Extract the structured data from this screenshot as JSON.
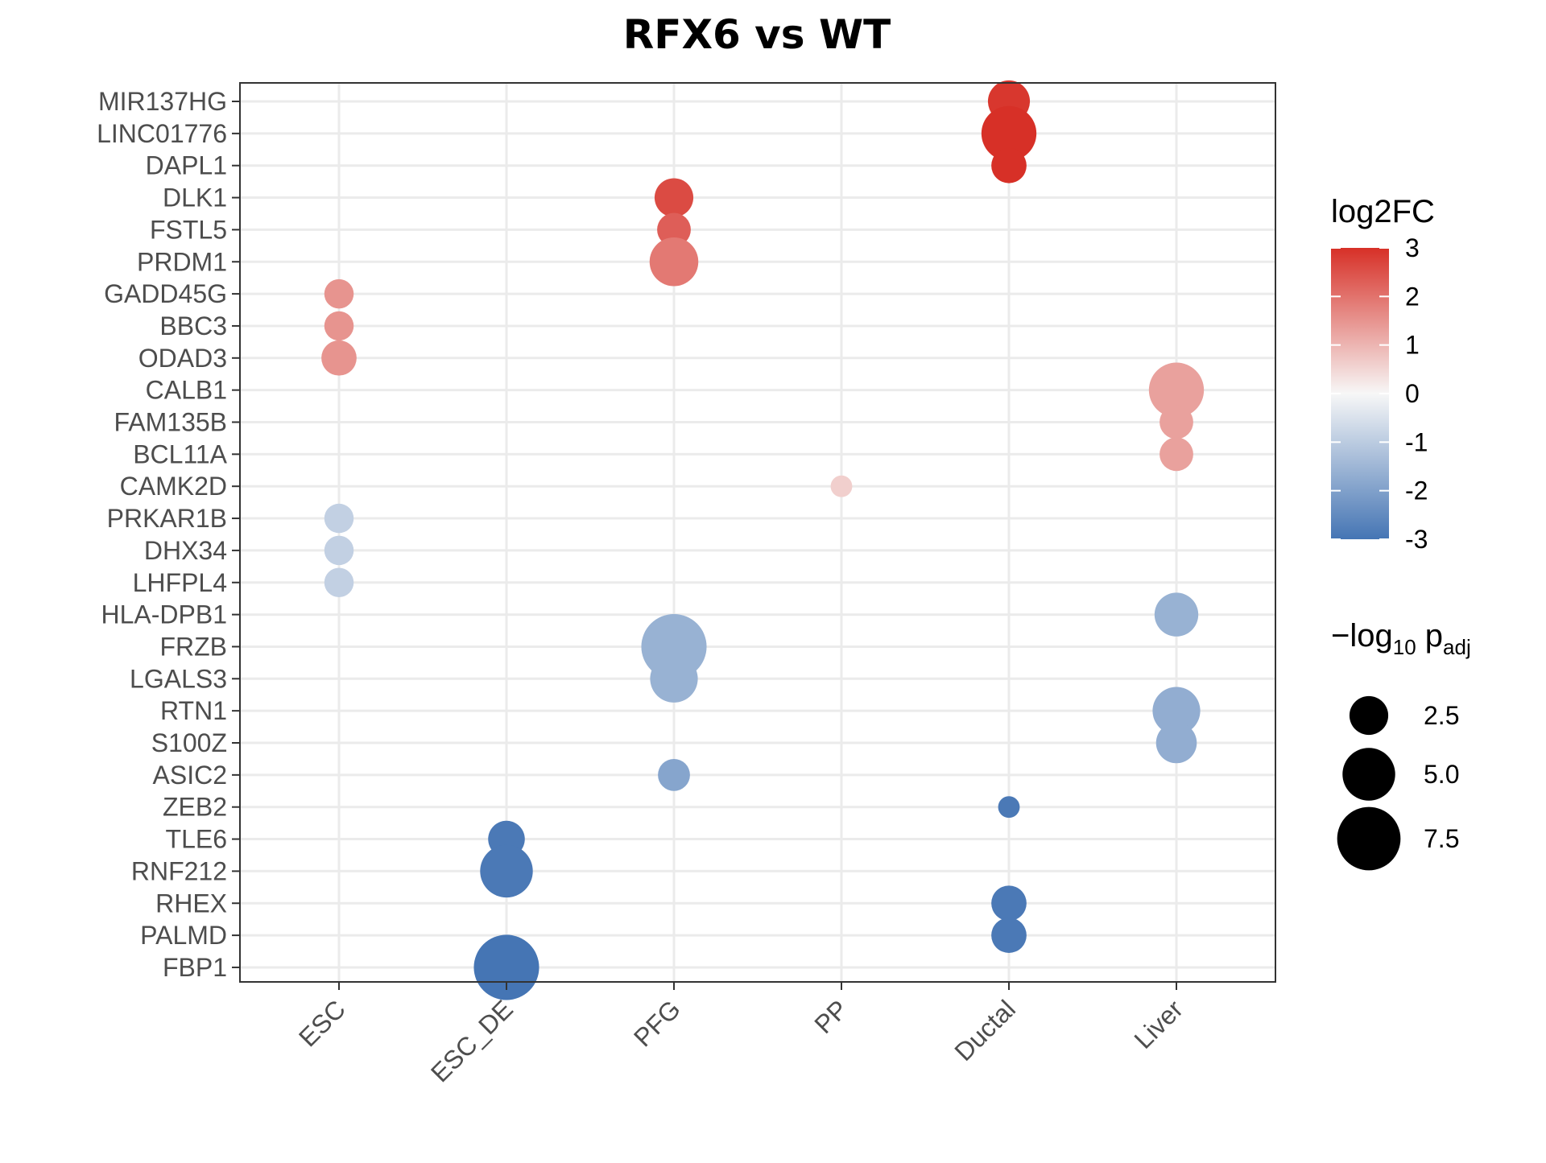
{
  "chart_data": {
    "type": "scatter",
    "title": "RFX6 vs WT",
    "xlabel": "",
    "ylabel": "",
    "x_categories": [
      "ESC",
      "ESC_DE",
      "PFG",
      "PP",
      "Ductal",
      "Liver"
    ],
    "y_categories": [
      "MIR137HG",
      "LINC01776",
      "DAPL1",
      "DLK1",
      "FSTL5",
      "PRDM1",
      "GADD45G",
      "BBC3",
      "ODAD3",
      "CALB1",
      "FAM135B",
      "BCL11A",
      "CAMK2D",
      "PRKAR1B",
      "DHX34",
      "LHFPL4",
      "HLA-DPB1",
      "FRZB",
      "LGALS3",
      "RTN1",
      "S100Z",
      "ASIC2",
      "ZEB2",
      "TLE6",
      "RNF212",
      "RHEX",
      "PALMD",
      "FBP1"
    ],
    "grid": true,
    "legend_position": "right",
    "color_legend": {
      "title": "log2FC",
      "range": [
        -3,
        3
      ],
      "ticks": [
        "3",
        "2",
        "1",
        "0",
        "-1",
        "-2",
        "-3"
      ],
      "colors": [
        "#4575b4",
        "#f7f7f7",
        "#d73027"
      ]
    },
    "size_legend": {
      "title_main": "−log",
      "title_sub": "10",
      "title_p": " p",
      "title_p_sub": "adj",
      "entries": [
        {
          "value": 2.5,
          "label": "2.5"
        },
        {
          "value": 5.0,
          "label": "5.0"
        },
        {
          "value": 7.5,
          "label": "7.5"
        }
      ]
    },
    "points": [
      {
        "x": "Ductal",
        "y": "MIR137HG",
        "log2FC": 2.9,
        "neglog10padj": 3.0
      },
      {
        "x": "Ductal",
        "y": "LINC01776",
        "log2FC": 3.0,
        "neglog10padj": 5.5
      },
      {
        "x": "Ductal",
        "y": "DAPL1",
        "log2FC": 3.0,
        "neglog10padj": 2.0
      },
      {
        "x": "PFG",
        "y": "DLK1",
        "log2FC": 2.6,
        "neglog10padj": 2.5
      },
      {
        "x": "PFG",
        "y": "FSTL5",
        "log2FC": 2.3,
        "neglog10padj": 1.8
      },
      {
        "x": "PFG",
        "y": "PRDM1",
        "log2FC": 1.9,
        "neglog10padj": 4.2
      },
      {
        "x": "ESC",
        "y": "GADD45G",
        "log2FC": 1.5,
        "neglog10padj": 1.3
      },
      {
        "x": "ESC",
        "y": "BBC3",
        "log2FC": 1.5,
        "neglog10padj": 1.3
      },
      {
        "x": "ESC",
        "y": "ODAD3",
        "log2FC": 1.5,
        "neglog10padj": 2.0
      },
      {
        "x": "Liver",
        "y": "CALB1",
        "log2FC": 1.3,
        "neglog10padj": 5.5
      },
      {
        "x": "Liver",
        "y": "FAM135B",
        "log2FC": 1.3,
        "neglog10padj": 1.8
      },
      {
        "x": "Liver",
        "y": "BCL11A",
        "log2FC": 1.3,
        "neglog10padj": 1.8
      },
      {
        "x": "PP",
        "y": "CAMK2D",
        "log2FC": 0.6,
        "neglog10padj": 0.6
      },
      {
        "x": "ESC",
        "y": "PRKAR1B",
        "log2FC": -0.9,
        "neglog10padj": 1.3
      },
      {
        "x": "ESC",
        "y": "DHX34",
        "log2FC": -0.9,
        "neglog10padj": 1.3
      },
      {
        "x": "ESC",
        "y": "LHFPL4",
        "log2FC": -0.9,
        "neglog10padj": 1.3
      },
      {
        "x": "Liver",
        "y": "HLA-DPB1",
        "log2FC": -1.6,
        "neglog10padj": 3.3
      },
      {
        "x": "PFG",
        "y": "FRZB",
        "log2FC": -1.6,
        "neglog10padj": 8.0
      },
      {
        "x": "PFG",
        "y": "LGALS3",
        "log2FC": -1.6,
        "neglog10padj": 4.0
      },
      {
        "x": "Liver",
        "y": "RTN1",
        "log2FC": -1.7,
        "neglog10padj": 4.0
      },
      {
        "x": "Liver",
        "y": "S100Z",
        "log2FC": -1.7,
        "neglog10padj": 2.8
      },
      {
        "x": "PFG",
        "y": "ASIC2",
        "log2FC": -1.9,
        "neglog10padj": 1.6
      },
      {
        "x": "Ductal",
        "y": "ZEB2",
        "log2FC": -2.9,
        "neglog10padj": 0.6
      },
      {
        "x": "ESC_DE",
        "y": "TLE6",
        "log2FC": -2.9,
        "neglog10padj": 2.2
      },
      {
        "x": "ESC_DE",
        "y": "RNF212",
        "log2FC": -2.9,
        "neglog10padj": 5.0
      },
      {
        "x": "Ductal",
        "y": "RHEX",
        "log2FC": -2.9,
        "neglog10padj": 2.0
      },
      {
        "x": "Ductal",
        "y": "PALMD",
        "log2FC": -2.9,
        "neglog10padj": 2.0
      },
      {
        "x": "ESC_DE",
        "y": "FBP1",
        "log2FC": -3.0,
        "neglog10padj": 8.0
      }
    ]
  }
}
